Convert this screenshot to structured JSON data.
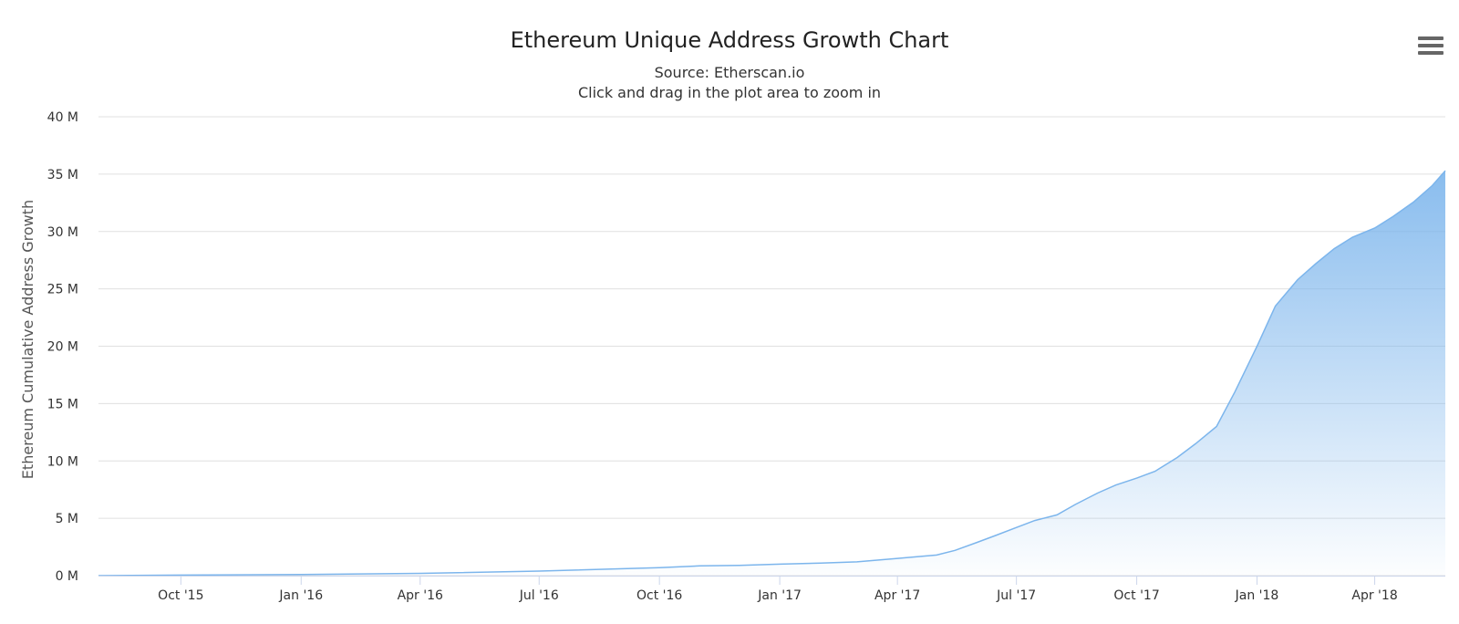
{
  "menu_icon": "hamburger-menu-icon",
  "chart_data": {
    "type": "area",
    "title": "Ethereum Unique Address Growth Chart",
    "subtitle": "Source: Etherscan.io",
    "subtitle2": "Click and drag in the plot area to zoom in",
    "xlabel": "",
    "ylabel": "Ethereum Cumulative Address Growth",
    "ylim": [
      0,
      40
    ],
    "y_unit": "M",
    "y_ticks": [
      0,
      5,
      10,
      15,
      20,
      25,
      30,
      35,
      40
    ],
    "y_tick_labels": [
      "0 M",
      "5 M",
      "10 M",
      "15 M",
      "20 M",
      "25 M",
      "30 M",
      "35 M",
      "40 M"
    ],
    "x_ticks": [
      "2015-10-01",
      "2016-01-01",
      "2016-04-01",
      "2016-07-01",
      "2016-10-01",
      "2017-01-01",
      "2017-04-01",
      "2017-07-01",
      "2017-10-01",
      "2018-01-01",
      "2018-04-01"
    ],
    "x_tick_labels": [
      "Oct '15",
      "Jan '16",
      "Apr '16",
      "Jul '16",
      "Oct '16",
      "Jan '17",
      "Apr '17",
      "Jul '17",
      "Oct '17",
      "Jan '18",
      "Apr '18"
    ],
    "x_range": [
      "2015-07-30",
      "2018-05-25"
    ],
    "grid": true,
    "legend": "none",
    "series": [
      {
        "color": "#7cb5ec",
        "x": [
          "2015-07-30",
          "2015-10-01",
          "2016-01-01",
          "2016-04-01",
          "2016-07-01",
          "2016-10-01",
          "2016-11-01",
          "2016-12-01",
          "2017-01-01",
          "2017-02-01",
          "2017-03-01",
          "2017-04-01",
          "2017-05-01",
          "2017-05-15",
          "2017-06-01",
          "2017-06-15",
          "2017-07-01",
          "2017-07-15",
          "2017-08-01",
          "2017-08-15",
          "2017-09-01",
          "2017-09-15",
          "2017-10-01",
          "2017-10-15",
          "2017-11-01",
          "2017-11-15",
          "2017-12-01",
          "2017-12-15",
          "2018-01-01",
          "2018-01-15",
          "2018-02-01",
          "2018-02-15",
          "2018-03-01",
          "2018-03-15",
          "2018-04-01",
          "2018-04-15",
          "2018-05-01",
          "2018-05-15",
          "2018-05-25"
        ],
        "values": [
          0,
          0.05,
          0.1,
          0.2,
          0.4,
          0.7,
          0.85,
          0.9,
          1.0,
          1.1,
          1.2,
          1.5,
          1.8,
          2.2,
          2.9,
          3.5,
          4.2,
          4.8,
          5.3,
          6.2,
          7.2,
          7.9,
          8.5,
          9.1,
          10.3,
          11.5,
          13.0,
          16.0,
          20.0,
          23.5,
          25.8,
          27.2,
          28.5,
          29.5,
          30.3,
          31.3,
          32.6,
          34.0,
          35.3
        ]
      }
    ]
  }
}
